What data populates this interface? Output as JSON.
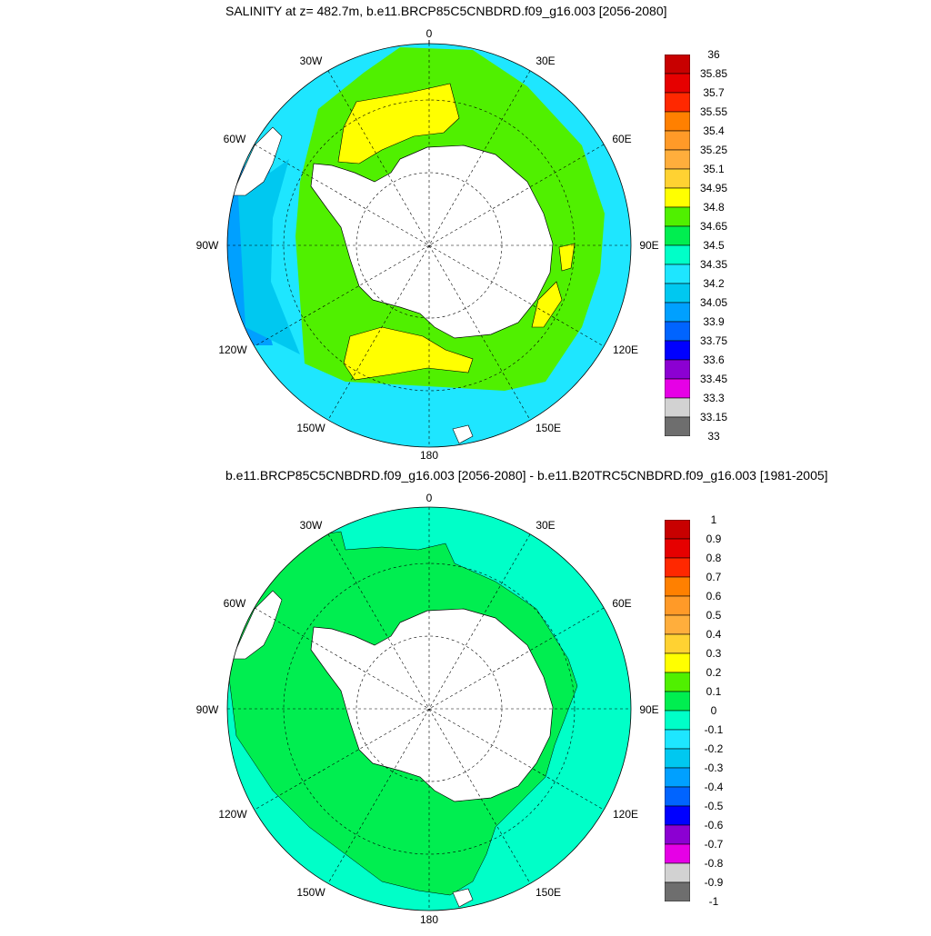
{
  "top_panel": {
    "title": "SALINITY at z= 482.7m, b.e11.BRCP85C5CNBDRD.f09_g16.003 [2056-2080]",
    "lon_labels": [
      "0",
      "30E",
      "60E",
      "90E",
      "120E",
      "150E",
      "180",
      "150W",
      "120W",
      "90W",
      "60W",
      "30W"
    ],
    "colorbar": {
      "labels": [
        "36",
        "35.85",
        "35.7",
        "35.55",
        "35.4",
        "35.25",
        "35.1",
        "34.95",
        "34.8",
        "34.65",
        "34.5",
        "34.35",
        "34.2",
        "34.05",
        "33.9",
        "33.75",
        "33.6",
        "33.45",
        "33.3",
        "33.15",
        "33"
      ],
      "colors": [
        "#c80000",
        "#e60000",
        "#ff2800",
        "#ff8000",
        "#ff9a28",
        "#ffae3c",
        "#ffd232",
        "#ffff00",
        "#50f000",
        "#00ee50",
        "#00ffc8",
        "#1ee6ff",
        "#00c8f0",
        "#00a0ff",
        "#0064ff",
        "#0000ff",
        "#8c00d2",
        "#e600e6",
        "#d2d2d2",
        "#6e6e6e"
      ]
    },
    "fill_colors": {
      "outer": "#1ee6ff",
      "west_band": "#00c8f0",
      "west_deep": "#00a0ff",
      "ring": "#50f000",
      "core": "#ffff00",
      "land": "#ffffff"
    }
  },
  "bottom_panel": {
    "title": "b.e11.BRCP85C5CNBDRD.f09_g16.003 [2056-2080] - b.e11.B20TRC5CNBDRD.f09_g16.003 [1981-2005]",
    "lon_labels": [
      "0",
      "30E",
      "60E",
      "90E",
      "120E",
      "150E",
      "180",
      "150W",
      "120W",
      "90W",
      "60W",
      "30W"
    ],
    "colorbar": {
      "labels": [
        "1",
        "0.9",
        "0.8",
        "0.7",
        "0.6",
        "0.5",
        "0.4",
        "0.3",
        "0.2",
        "0.1",
        "0",
        "-0.1",
        "-0.2",
        "-0.3",
        "-0.4",
        "-0.5",
        "-0.6",
        "-0.7",
        "-0.8",
        "-0.9",
        "-1"
      ],
      "colors": [
        "#c80000",
        "#e60000",
        "#ff2800",
        "#ff8000",
        "#ff9a28",
        "#ffae3c",
        "#ffd232",
        "#ffff00",
        "#50f000",
        "#00ee50",
        "#00ffc8",
        "#1ee6ff",
        "#00c8f0",
        "#00a0ff",
        "#0064ff",
        "#0000ff",
        "#8c00d2",
        "#e600e6",
        "#d2d2d2",
        "#6e6e6e"
      ]
    },
    "fill_colors": {
      "outer": "#00ffc8",
      "ring": "#00ee50",
      "land": "#ffffff"
    }
  }
}
